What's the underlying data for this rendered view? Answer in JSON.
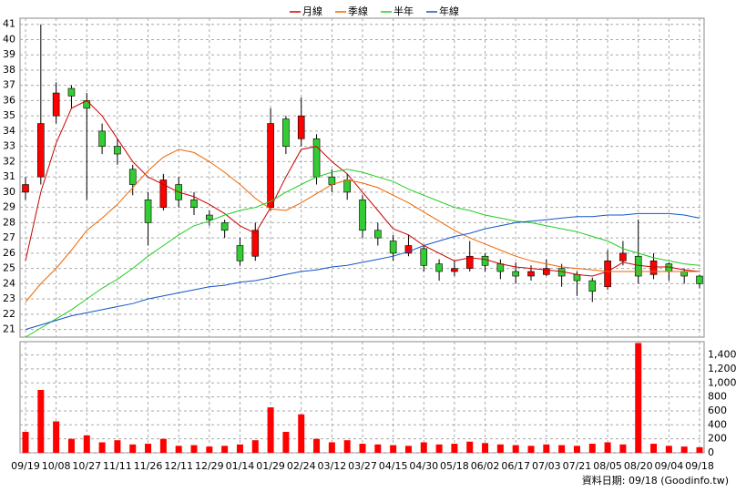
{
  "chart_data": {
    "type": "candlestick",
    "categories": [
      "09/19",
      null,
      "10/08",
      null,
      "10/27",
      null,
      "11/11",
      null,
      "11/26",
      null,
      "12/11",
      null,
      "12/29",
      null,
      "01/14",
      null,
      "01/29",
      null,
      "02/24",
      null,
      "03/12",
      null,
      "03/27",
      null,
      "04/15",
      null,
      "04/30",
      null,
      "05/18",
      null,
      "06/02",
      null,
      "06/17",
      null,
      "07/03",
      null,
      "07/21",
      null,
      "08/05",
      null,
      "08/20",
      null,
      "09/04",
      null,
      "09/18"
    ],
    "open": [
      30,
      31,
      35,
      36.8,
      36,
      34,
      33,
      31.5,
      29.5,
      29,
      30.5,
      29.5,
      28.5,
      28,
      26.5,
      25.8,
      29,
      34.8,
      33.5,
      33.5,
      31,
      30.8,
      29.5,
      27.5,
      26.8,
      26,
      26.3,
      25.3,
      24.8,
      25,
      25.8,
      25.3,
      24.8,
      24.5,
      24.6,
      25,
      24.6,
      24.2,
      23.8,
      25.5,
      25.8,
      24.6,
      25.3,
      24.8,
      24.5
    ],
    "high": [
      31,
      41,
      37.2,
      37,
      36.5,
      34.5,
      33.5,
      31.8,
      30,
      31.2,
      31,
      30,
      28.8,
      28.2,
      27,
      28,
      35.5,
      35,
      36.2,
      33.8,
      31.5,
      31.2,
      29.8,
      28,
      27.2,
      27.2,
      26.5,
      25.6,
      25.5,
      26.8,
      26,
      25.6,
      25.4,
      25.2,
      25.6,
      25.3,
      24.8,
      24.4,
      26.2,
      26.8,
      28.2,
      26,
      25.4,
      25,
      24.6
    ],
    "low": [
      29.5,
      30.5,
      34.5,
      35.5,
      29.5,
      32.5,
      31.8,
      29.8,
      26.5,
      28.8,
      29,
      28.5,
      27.8,
      27,
      25.2,
      25.5,
      28.8,
      32.5,
      33,
      30.5,
      30,
      29.5,
      27,
      26.5,
      25.5,
      25.8,
      24.8,
      24.2,
      24.5,
      24.8,
      24.8,
      24.3,
      24,
      24.2,
      24.5,
      23.8,
      23.2,
      22.8,
      23.6,
      25.2,
      24,
      24.3,
      24.2,
      24,
      23.7
    ],
    "close": [
      30.5,
      34.5,
      36.5,
      36.3,
      35.5,
      33,
      32.5,
      30.5,
      28,
      30.8,
      29.5,
      29,
      28.2,
      27.5,
      25.5,
      27.5,
      34.5,
      33,
      35,
      31,
      30.5,
      30,
      27.5,
      27,
      26,
      26.5,
      25.2,
      24.8,
      25,
      25.8,
      25.2,
      24.8,
      24.5,
      24.8,
      25,
      24.5,
      24.2,
      23.5,
      25.5,
      26,
      24.5,
      25.5,
      24.8,
      24.5,
      24
    ],
    "volume": [
      300,
      900,
      450,
      200,
      250,
      150,
      180,
      120,
      130,
      200,
      100,
      110,
      90,
      100,
      120,
      180,
      650,
      300,
      550,
      200,
      150,
      180,
      130,
      120,
      110,
      100,
      150,
      120,
      130,
      160,
      140,
      120,
      110,
      100,
      120,
      110,
      100,
      130,
      150,
      120,
      1570,
      130,
      100,
      90,
      80
    ],
    "up_color": "#33cc33",
    "down_color": "#ff0000",
    "volume_color": "#ff0000",
    "series": [
      {
        "name": "月線",
        "color": "#cc0000",
        "values": [
          25.5,
          30,
          33.2,
          35.5,
          36,
          35,
          33.5,
          32,
          31,
          30.5,
          30,
          29.7,
          29.2,
          28.6,
          27.8,
          27.3,
          29,
          31,
          32.8,
          33,
          32,
          31.2,
          30,
          28.8,
          27.6,
          27.2,
          26.5,
          26,
          25.5,
          25.7,
          25.6,
          25.3,
          25.1,
          25,
          24.9,
          24.8,
          24.6,
          24.5,
          24.8,
          25.4,
          25.2,
          25.1,
          25.1,
          24.9,
          24.8
        ]
      },
      {
        "name": "季線",
        "color": "#ee6600",
        "values": [
          22.8,
          24,
          25,
          26.2,
          27.5,
          28.3,
          29.2,
          30.3,
          31.4,
          32.3,
          32.8,
          32.6,
          32,
          31.3,
          30.5,
          29.6,
          28.9,
          28.8,
          29.3,
          29.9,
          30.5,
          30.8,
          30.6,
          30.3,
          29.8,
          29.3,
          28.7,
          28.1,
          27.5,
          27,
          26.6,
          26.2,
          25.8,
          25.5,
          25.3,
          25.1,
          25,
          24.9,
          24.8,
          24.8,
          24.8,
          24.8,
          24.8,
          24.8,
          24.8
        ]
      },
      {
        "name": "半年",
        "color": "#22cc22",
        "values": [
          20.5,
          21.1,
          21.7,
          22.3,
          23,
          23.7,
          24.3,
          25,
          25.8,
          26.5,
          27.2,
          27.8,
          28.1,
          28.5,
          28.8,
          29,
          29.4,
          30,
          30.5,
          31,
          31.3,
          31.5,
          31.3,
          31,
          30.7,
          30.2,
          29.8,
          29.4,
          29,
          28.8,
          28.5,
          28.3,
          28.1,
          28,
          27.8,
          27.6,
          27.4,
          27.1,
          26.8,
          26.3,
          26,
          25.7,
          25.5,
          25.3,
          25.2
        ]
      },
      {
        "name": "年線",
        "color": "#1155cc",
        "values": [
          21,
          21.3,
          21.6,
          21.9,
          22.1,
          22.3,
          22.5,
          22.7,
          23,
          23.2,
          23.4,
          23.6,
          23.8,
          23.9,
          24.1,
          24.2,
          24.4,
          24.6,
          24.8,
          24.9,
          25.1,
          25.2,
          25.4,
          25.6,
          25.8,
          26.1,
          26.5,
          26.8,
          27.1,
          27.3,
          27.6,
          27.8,
          28,
          28.1,
          28.2,
          28.3,
          28.4,
          28.4,
          28.5,
          28.5,
          28.6,
          28.6,
          28.6,
          28.5,
          28.3
        ]
      }
    ],
    "ylim": [
      20.5,
      41.4
    ],
    "yticks": [
      21,
      22,
      23,
      24,
      25,
      26,
      27,
      28,
      29,
      30,
      31,
      32,
      33,
      34,
      35,
      36,
      37,
      38,
      39,
      40,
      41
    ],
    "volume_ylim": [
      0,
      1590
    ],
    "volume_yticks": [
      0,
      200,
      400,
      600,
      800,
      {
        "value": 1000,
        "label": "1,000"
      },
      {
        "value": 1200,
        "label": "1,200"
      },
      {
        "value": 1400,
        "label": "1,400"
      }
    ],
    "grid": true,
    "footer": "資料日期: 09/18 (Goodinfo.tw)"
  }
}
